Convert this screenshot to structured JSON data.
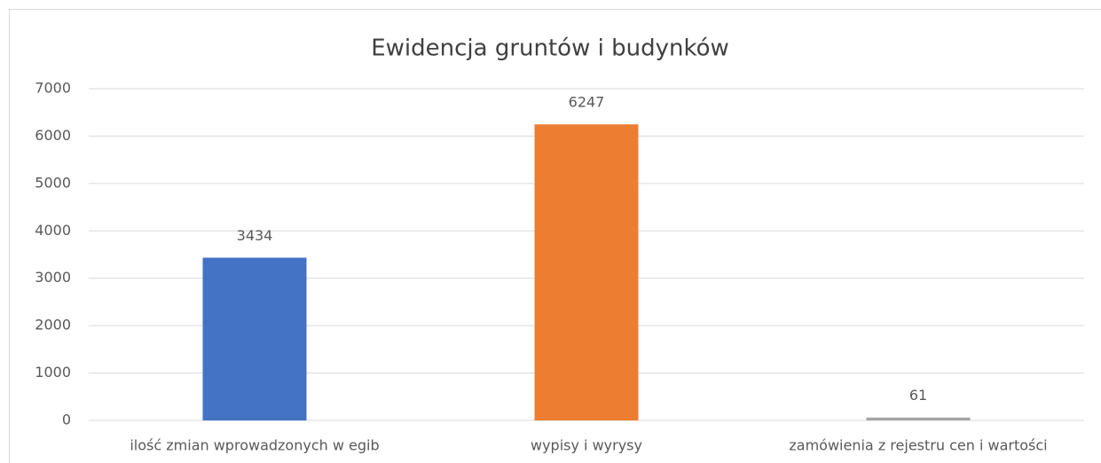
{
  "chart_data": {
    "type": "bar",
    "title": "Ewidencja gruntów i budynków",
    "categories": [
      "ilość zmian wprowadzonych w egib",
      "wypisy i wyrysy",
      "zamówienia z rejestru cen i wartości"
    ],
    "values": [
      3434,
      6247,
      61
    ],
    "colors": [
      "#4472c4",
      "#ed7d31",
      "#a5a5a5"
    ],
    "ylim": [
      0,
      7000
    ],
    "yticks": [
      0,
      1000,
      2000,
      3000,
      4000,
      5000,
      6000,
      7000
    ],
    "grid": true
  }
}
